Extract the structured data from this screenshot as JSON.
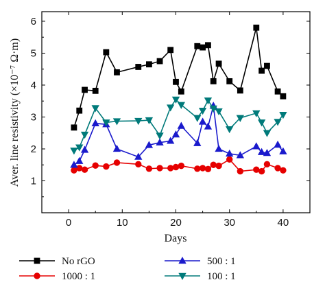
{
  "chart_data": {
    "type": "line",
    "xlabel": "Days",
    "ylabel": "Aver. line resistivity (×10⁻⁷ Ω·m)",
    "xlim": [
      -5,
      45
    ],
    "ylim": [
      0,
      6.3
    ],
    "xticks": [
      0,
      10,
      20,
      30,
      40
    ],
    "yticks": [
      1,
      2,
      3,
      4,
      5,
      6
    ],
    "legend_placement": "bottom",
    "series": [
      {
        "name": "No rGO",
        "color": "#000000",
        "marker": "square",
        "x": [
          1,
          2,
          3,
          5,
          7,
          9,
          13,
          15,
          17,
          19,
          20,
          21,
          24,
          25,
          26,
          27,
          28,
          30,
          32,
          35,
          36,
          37,
          39,
          40
        ],
        "y": [
          2.67,
          3.2,
          3.85,
          3.82,
          5.03,
          4.4,
          4.57,
          4.65,
          4.75,
          5.1,
          4.1,
          3.8,
          5.22,
          5.18,
          5.25,
          4.12,
          4.67,
          4.12,
          3.83,
          5.8,
          4.45,
          4.6,
          3.8,
          3.65
        ]
      },
      {
        "name": "1000 : 1",
        "color": "#e60000",
        "marker": "circle",
        "x": [
          1,
          2,
          3,
          5,
          7,
          9,
          13,
          15,
          17,
          19,
          20,
          21,
          24,
          25,
          26,
          27,
          28,
          30,
          32,
          35,
          36,
          37,
          39,
          40
        ],
        "y": [
          1.33,
          1.4,
          1.35,
          1.48,
          1.45,
          1.57,
          1.52,
          1.38,
          1.4,
          1.4,
          1.43,
          1.47,
          1.38,
          1.4,
          1.37,
          1.5,
          1.47,
          1.67,
          1.3,
          1.35,
          1.3,
          1.52,
          1.4,
          1.33
        ]
      },
      {
        "name": "500 : 1",
        "color": "#1a1acc",
        "marker": "triangle-up",
        "x": [
          1,
          2,
          3,
          5,
          7,
          9,
          13,
          15,
          17,
          19,
          20,
          21,
          24,
          25,
          26,
          27,
          28,
          30,
          32,
          35,
          36,
          37,
          39,
          40
        ],
        "y": [
          1.5,
          1.62,
          1.97,
          2.8,
          2.77,
          2.0,
          1.75,
          2.12,
          2.2,
          2.25,
          2.45,
          2.72,
          2.18,
          2.85,
          2.7,
          3.35,
          2.0,
          1.85,
          1.8,
          2.08,
          1.9,
          1.87,
          2.13,
          1.92
        ]
      },
      {
        "name": "100 : 1",
        "color": "#007a7a",
        "marker": "triangle-down",
        "x": [
          1,
          2,
          3,
          5,
          7,
          9,
          13,
          15,
          17,
          19,
          20,
          21,
          24,
          25,
          26,
          27,
          28,
          30,
          32,
          35,
          36,
          37,
          39,
          40
        ],
        "y": [
          1.95,
          2.05,
          2.45,
          3.28,
          2.83,
          2.87,
          2.88,
          2.9,
          2.42,
          3.3,
          3.55,
          3.38,
          2.97,
          3.2,
          3.52,
          3.27,
          3.18,
          2.62,
          2.97,
          3.12,
          2.83,
          2.5,
          2.85,
          3.07
        ]
      }
    ]
  }
}
